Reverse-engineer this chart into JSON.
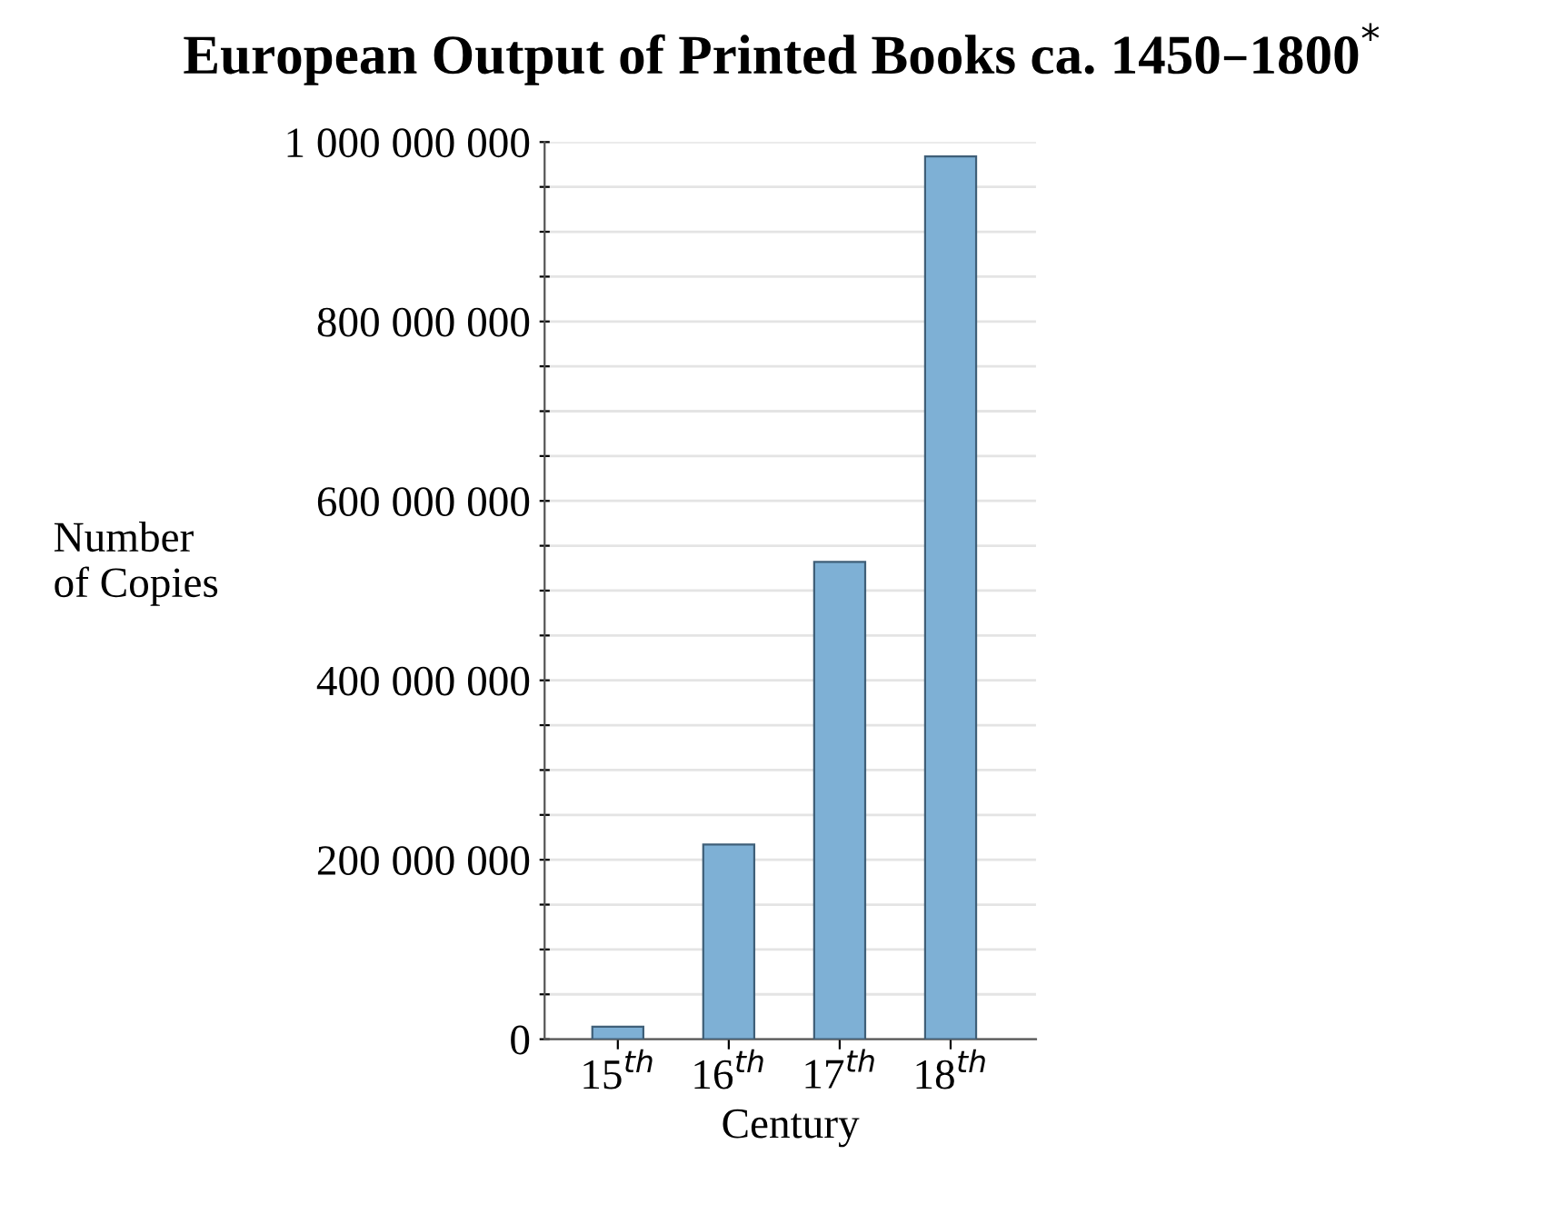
{
  "chart_data": {
    "type": "bar",
    "title": "European Output of Printed Books ca. 1450–1800$^{*}$",
    "xlabel": "Century",
    "ylabel": "Number\nof Copies",
    "categories": [
      "15$^{th}$",
      "16$^{th}$",
      "17$^{th}$",
      "18$^{th}$"
    ],
    "values": [
      14000000,
      217000000,
      532000000,
      984000000
    ],
    "color": "#7eb0d5",
    "ylim": [
      0,
      1000000000
    ],
    "yticks": [
      {
        "value": 0,
        "label": "0"
      },
      {
        "value": 50000000,
        "label": null
      },
      {
        "value": 100000000,
        "label": null
      },
      {
        "value": 150000000,
        "label": null
      },
      {
        "value": 200000000,
        "label": "200 000 000"
      },
      {
        "value": 250000000,
        "label": null
      },
      {
        "value": 300000000,
        "label": null
      },
      {
        "value": 350000000,
        "label": null
      },
      {
        "value": 400000000,
        "label": "400 000 000"
      },
      {
        "value": 450000000,
        "label": null
      },
      {
        "value": 500000000,
        "label": null
      },
      {
        "value": 550000000,
        "label": null
      },
      {
        "value": 600000000,
        "label": "600 000 000"
      },
      {
        "value": 650000000,
        "label": null
      },
      {
        "value": 700000000,
        "label": null
      },
      {
        "value": 750000000,
        "label": null
      },
      {
        "value": 800000000,
        "label": "800 000 000"
      },
      {
        "value": 850000000,
        "label": null
      },
      {
        "value": 900000000,
        "label": null
      },
      {
        "value": 950000000,
        "label": null
      },
      {
        "value": 1000000000,
        "label": "1 000 000 000"
      }
    ],
    "grid": "y"
  }
}
